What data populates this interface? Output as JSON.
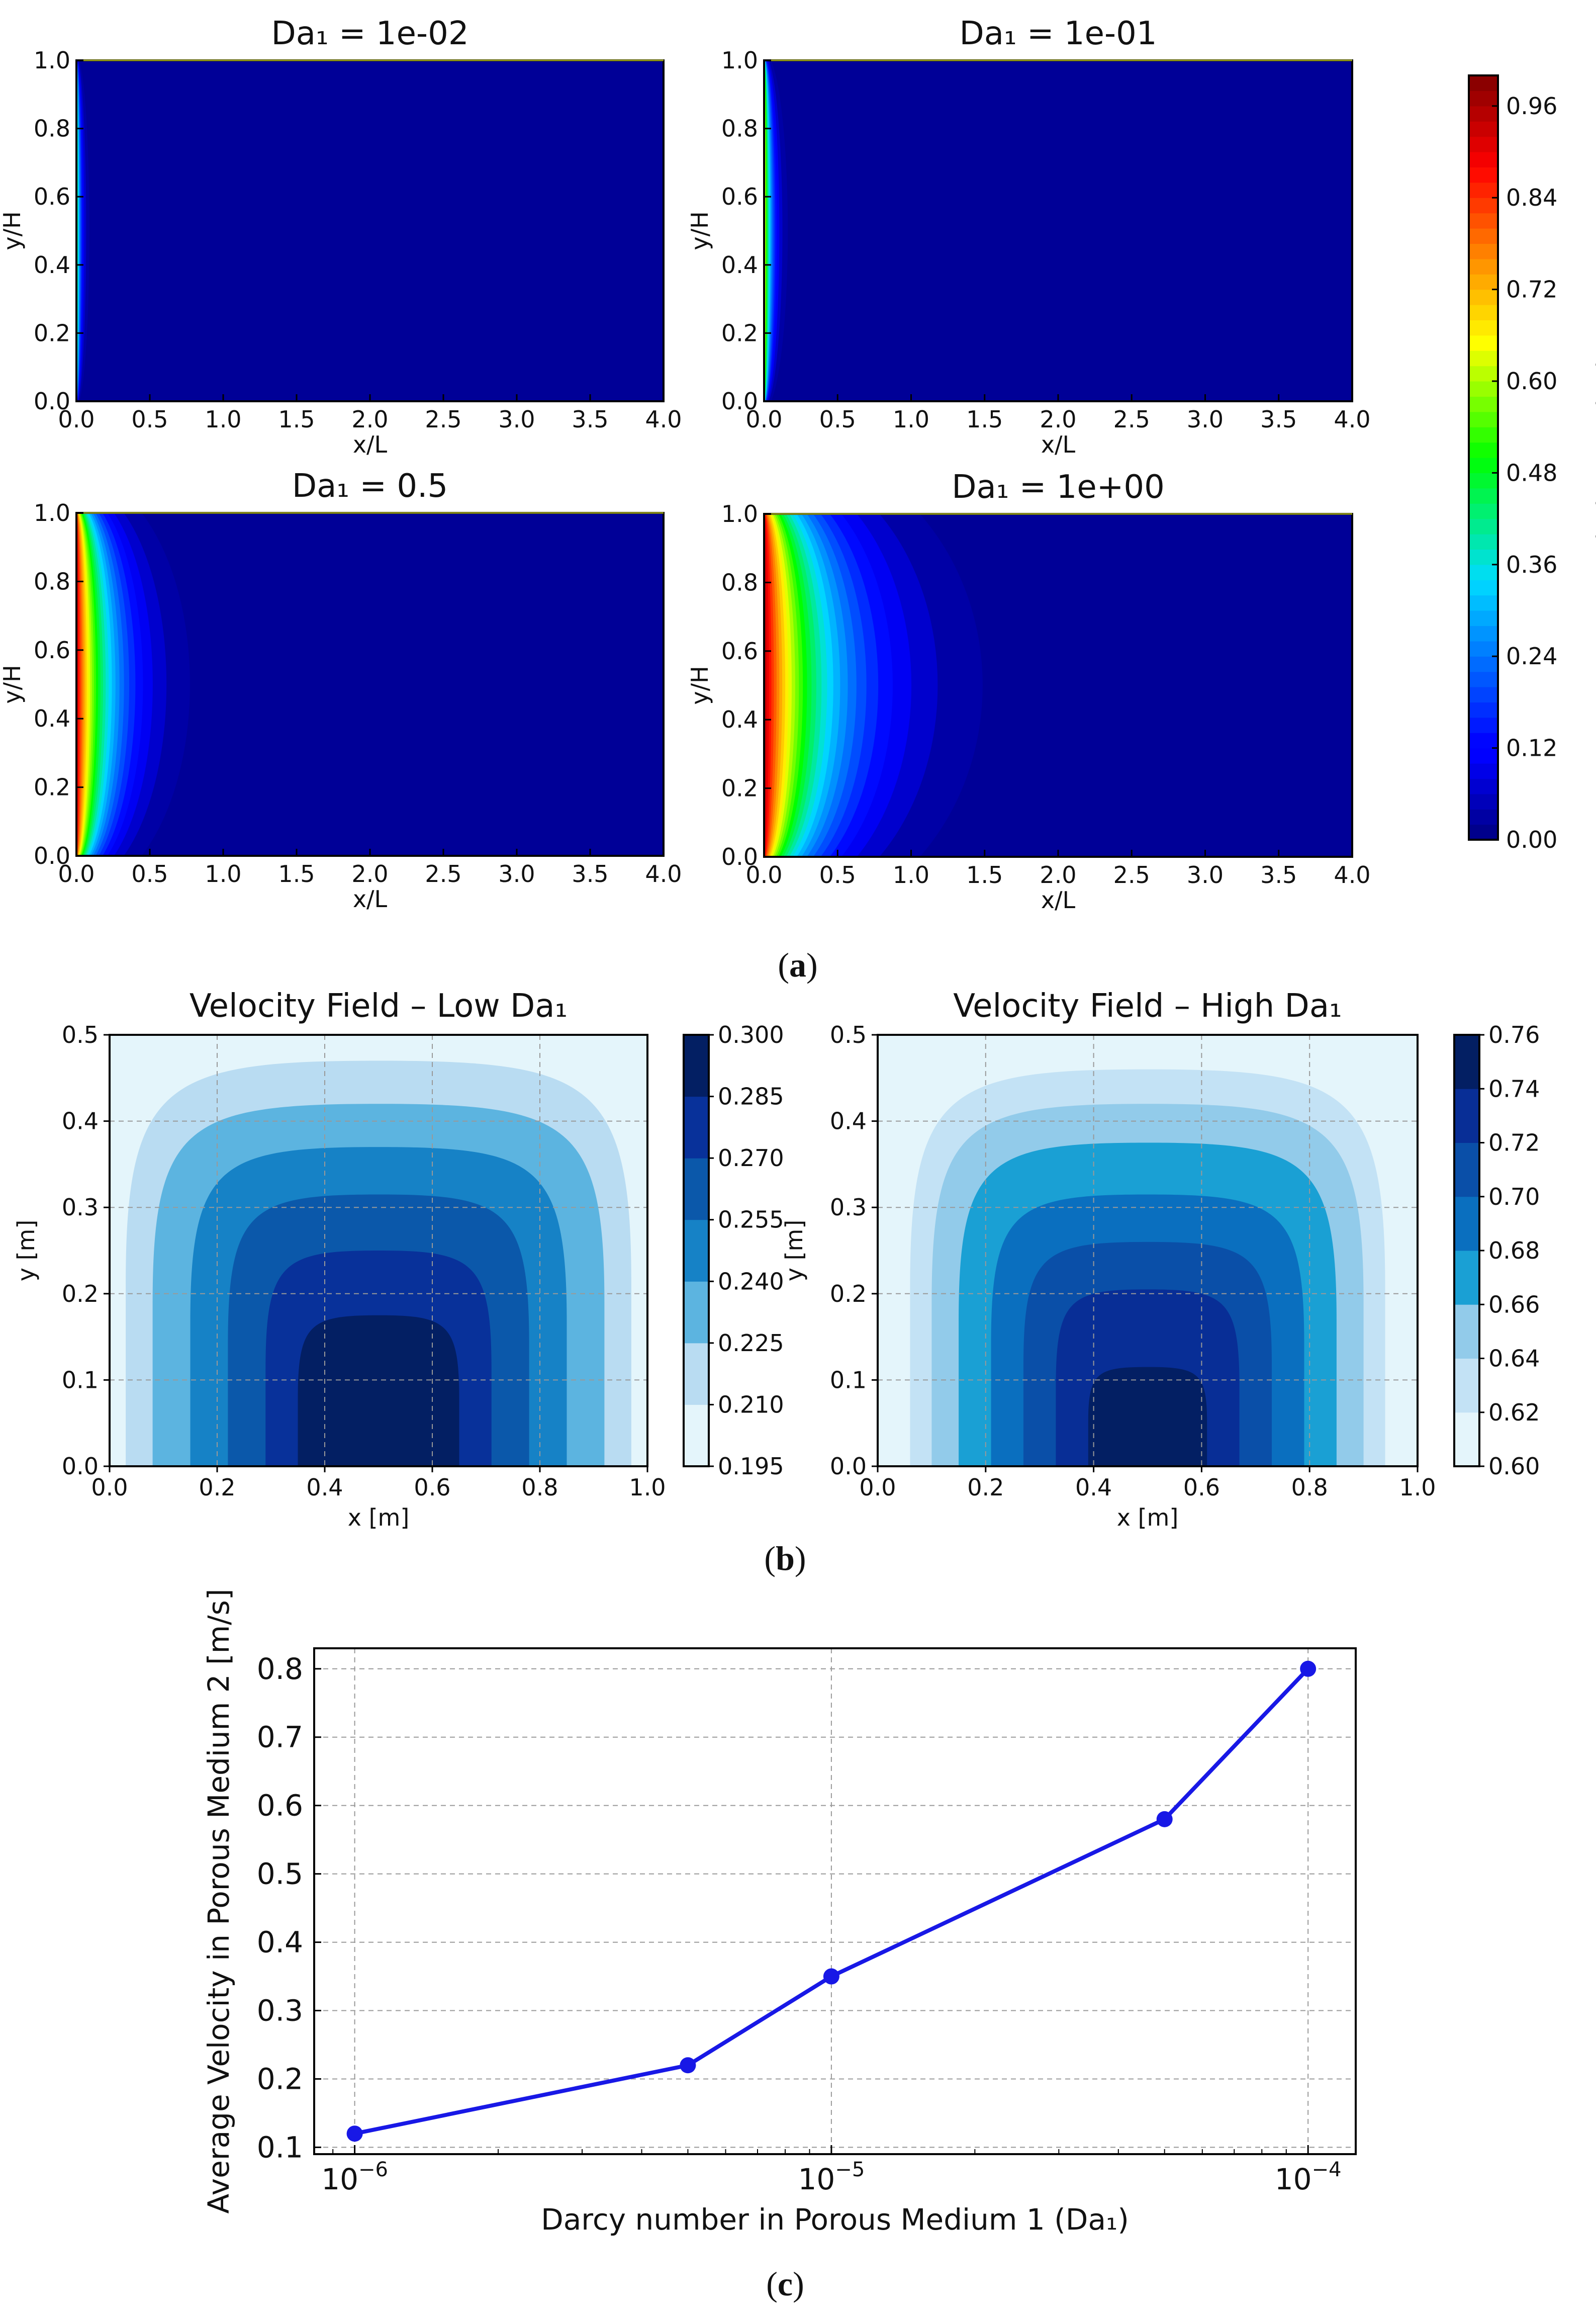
{
  "captions": {
    "a": "a",
    "b": "b",
    "c": "c"
  },
  "chart_data": [
    {
      "id": "a1",
      "type": "heatmap",
      "title": "Da₁ = 1e-02",
      "xlabel": "x/L",
      "ylabel": "y/H",
      "xlim": [
        0,
        4
      ],
      "ylim": [
        0,
        1
      ],
      "xticks": [
        "0.0",
        "0.5",
        "1.0",
        "1.5",
        "2.0",
        "2.5",
        "3.0",
        "3.5",
        "4.0"
      ],
      "yticks": [
        "0.0",
        "0.2",
        "0.4",
        "0.6",
        "0.8",
        "1.0"
      ],
      "peak_velocity": 0.55,
      "decay_length_xL": 0.03
    },
    {
      "id": "a2",
      "type": "heatmap",
      "title": "Da₁ = 1e-01",
      "xlabel": "x/L",
      "ylabel": "y/H",
      "xlim": [
        0,
        4
      ],
      "ylim": [
        0,
        1
      ],
      "xticks": [
        "0.0",
        "0.5",
        "1.0",
        "1.5",
        "2.0",
        "2.5",
        "3.0",
        "3.5",
        "4.0"
      ],
      "yticks": [
        "0.0",
        "0.2",
        "0.4",
        "0.6",
        "0.8",
        "1.0"
      ],
      "peak_velocity": 0.72,
      "decay_length_xL": 0.05
    },
    {
      "id": "a3",
      "type": "heatmap",
      "title": "Da₁ = 0.5",
      "xlabel": "x/L",
      "ylabel": "y/H",
      "xlim": [
        0,
        4
      ],
      "ylim": [
        0,
        1
      ],
      "xticks": [
        "0.0",
        "0.5",
        "1.0",
        "1.5",
        "2.0",
        "2.5",
        "3.0",
        "3.5",
        "4.0"
      ],
      "yticks": [
        "0.0",
        "0.2",
        "0.4",
        "0.6",
        "0.8",
        "1.0"
      ],
      "peak_velocity": 0.95,
      "decay_length_xL": 0.22
    },
    {
      "id": "a4",
      "type": "heatmap",
      "title": "Da₁ = 1e+00",
      "xlabel": "x/L",
      "ylabel": "y/H",
      "xlim": [
        0,
        4
      ],
      "ylim": [
        0,
        1
      ],
      "xticks": [
        "0.0",
        "0.5",
        "1.0",
        "1.5",
        "2.0",
        "2.5",
        "3.0",
        "3.5",
        "4.0"
      ],
      "yticks": [
        "0.0",
        "0.2",
        "0.4",
        "0.6",
        "0.8",
        "1.0"
      ],
      "peak_velocity": 0.97,
      "decay_length_xL": 0.42
    },
    {
      "id": "a-colorbar",
      "type": "colorbar",
      "label": "Velocity Magnitude",
      "range": [
        0,
        1
      ],
      "ticks": [
        "0.00",
        "0.12",
        "0.24",
        "0.36",
        "0.48",
        "0.60",
        "0.72",
        "0.84",
        "0.96"
      ],
      "tick_values": [
        0,
        0.12,
        0.24,
        0.36,
        0.48,
        0.6,
        0.72,
        0.84,
        0.96
      ]
    },
    {
      "id": "b1",
      "type": "heatmap",
      "title": "Velocity Field – Low Da₁",
      "xlabel": "x [m]",
      "ylabel": "y [m]",
      "xlim": [
        0,
        1
      ],
      "ylim": [
        0,
        0.5
      ],
      "xticks": [
        "0.0",
        "0.2",
        "0.4",
        "0.6",
        "0.8",
        "1.0"
      ],
      "yticks": [
        "0.0",
        "0.1",
        "0.2",
        "0.3",
        "0.4",
        "0.5"
      ],
      "levels": [
        0.195,
        0.21,
        0.225,
        0.24,
        0.255,
        0.27,
        0.285,
        0.3
      ],
      "colorbar_ticks": [
        "0.195",
        "0.210",
        "0.225",
        "0.240",
        "0.255",
        "0.270",
        "0.285",
        "0.300"
      ],
      "contour_half_widths": [
        0.47,
        0.42,
        0.35,
        0.28,
        0.21,
        0.15
      ],
      "contour_heights": [
        0.47,
        0.42,
        0.37,
        0.315,
        0.25,
        0.175
      ],
      "colors": [
        "#e4f5fb",
        "#b9dcf2",
        "#5cb4e0",
        "#1682c6",
        "#0b58aa",
        "#08319a",
        "#031f63"
      ]
    },
    {
      "id": "b2",
      "type": "heatmap",
      "title": "Velocity Field – High Da₁",
      "xlabel": "x [m]",
      "ylabel": "y [m]",
      "xlim": [
        0,
        1
      ],
      "ylim": [
        0,
        0.5
      ],
      "xticks": [
        "0.0",
        "0.2",
        "0.4",
        "0.6",
        "0.8",
        "1.0"
      ],
      "yticks": [
        "0.0",
        "0.1",
        "0.2",
        "0.3",
        "0.4",
        "0.5"
      ],
      "levels": [
        0.6,
        0.62,
        0.64,
        0.66,
        0.68,
        0.7,
        0.72,
        0.74,
        0.76
      ],
      "colorbar_ticks": [
        "0.60",
        "0.62",
        "0.64",
        "0.66",
        "0.68",
        "0.70",
        "0.72",
        "0.74",
        "0.76"
      ],
      "contour_half_widths": [
        0.44,
        0.4,
        0.35,
        0.29,
        0.23,
        0.17,
        0.11
      ],
      "contour_heights": [
        0.46,
        0.42,
        0.375,
        0.315,
        0.26,
        0.205,
        0.115
      ],
      "colors": [
        "#e4f5fb",
        "#c3e2f5",
        "#92cbea",
        "#1aa0d4",
        "#0a6fbf",
        "#0a4fa8",
        "#082e96",
        "#031f63"
      ]
    },
    {
      "id": "c",
      "type": "line",
      "xlabel": "Darcy number in Porous Medium 1 (Da₁)",
      "ylabel": "Average Velocity in Porous Medium 2 [m/s]",
      "x": [
        1e-06,
        5e-06,
        1e-05,
        5e-05,
        0.0001
      ],
      "y": [
        0.12,
        0.22,
        0.35,
        0.58,
        0.8
      ],
      "xscale": "log",
      "xlim_log10": [
        -6.085,
        -3.9
      ],
      "ylim": [
        0.09,
        0.83
      ],
      "xticks": [
        {
          "value": 1e-06,
          "base": "10",
          "exp": "−6"
        },
        {
          "value": 1e-05,
          "base": "10",
          "exp": "−5"
        },
        {
          "value": 0.0001,
          "base": "10",
          "exp": "−4"
        }
      ],
      "yticks": [
        "0.1",
        "0.2",
        "0.3",
        "0.4",
        "0.5",
        "0.6",
        "0.7",
        "0.8"
      ],
      "color": "#1818e6",
      "grid": true
    }
  ]
}
